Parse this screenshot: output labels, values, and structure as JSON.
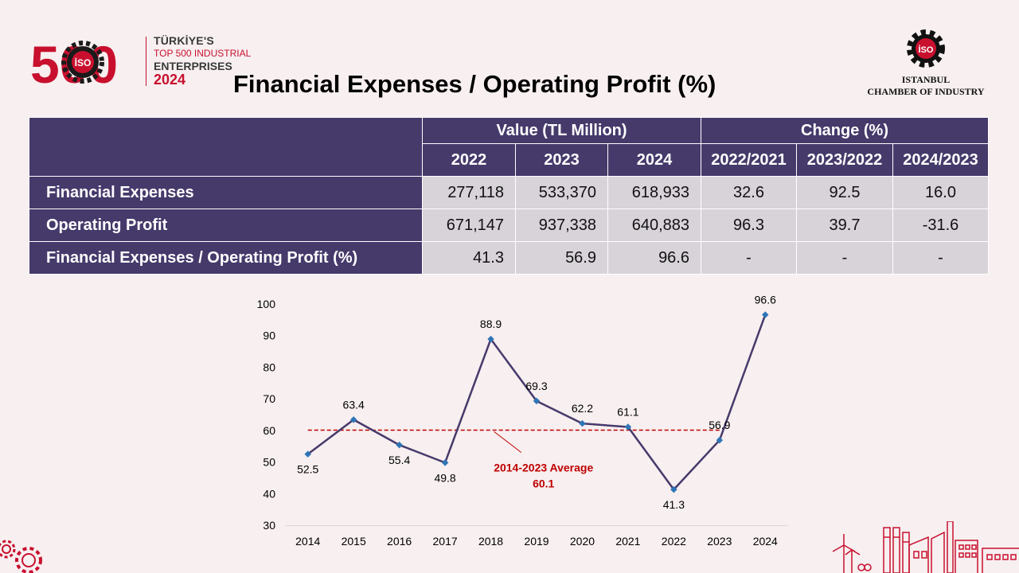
{
  "header": {
    "logo_number": "500",
    "logo_badge": "İSO",
    "logo_line1": "TÜRKİYE'S",
    "logo_line2": "TOP 500 INDUSTRIAL",
    "logo_line3": "ENTERPRISES",
    "logo_line4": "2024",
    "title": "Financial Expenses / Operating Profit (%)",
    "org_badge": "İSO",
    "org_line1": "ISTANBUL",
    "org_line2": "CHAMBER OF INDUSTRY"
  },
  "table": {
    "group_headers": [
      "Value (TL Million)",
      "Change (%)"
    ],
    "columns": [
      "2022",
      "2023",
      "2024",
      "2022/2021",
      "2023/2022",
      "2024/2023"
    ],
    "rows": [
      {
        "label": "Financial Expenses",
        "values": [
          "277,118",
          "533,370",
          "618,933"
        ],
        "changes": [
          "32.6",
          "92.5",
          "16.0"
        ]
      },
      {
        "label": "Operating Profit",
        "values": [
          "671,147",
          "937,338",
          "640,883"
        ],
        "changes": [
          "96.3",
          "39.7",
          "-31.6"
        ]
      },
      {
        "label": "Financial Expenses / Operating Profit (%)",
        "values": [
          "41.3",
          "56.9",
          "96.6"
        ],
        "changes": [
          "-",
          "-",
          "-"
        ]
      }
    ]
  },
  "chart_data": {
    "type": "line",
    "x": [
      "2014",
      "2015",
      "2016",
      "2017",
      "2018",
      "2019",
      "2020",
      "2021",
      "2022",
      "2023",
      "2024"
    ],
    "series": [
      {
        "values": [
          52.5,
          63.4,
          55.4,
          49.8,
          88.9,
          69.3,
          62.2,
          61.1,
          41.3,
          56.9,
          96.6
        ]
      }
    ],
    "value_labels": [
      "52.5",
      "63.4",
      "55.4",
      "49.8",
      "88.9",
      "69.3",
      "62.2",
      "61.1",
      "41.3",
      "56.9",
      "96.6"
    ],
    "yticks": [
      30,
      40,
      50,
      60,
      70,
      80,
      90,
      100
    ],
    "ylim": [
      30,
      100
    ],
    "average": {
      "value": 60.1,
      "label_line1": "2014-2023 Average",
      "label_line2": "60.1",
      "from": "2014",
      "to": "2023"
    },
    "line_color": "#463a6b",
    "marker_color": "#2e75b6",
    "average_color": "#c00000",
    "grid": false,
    "title": "",
    "xlabel": "",
    "ylabel": ""
  }
}
